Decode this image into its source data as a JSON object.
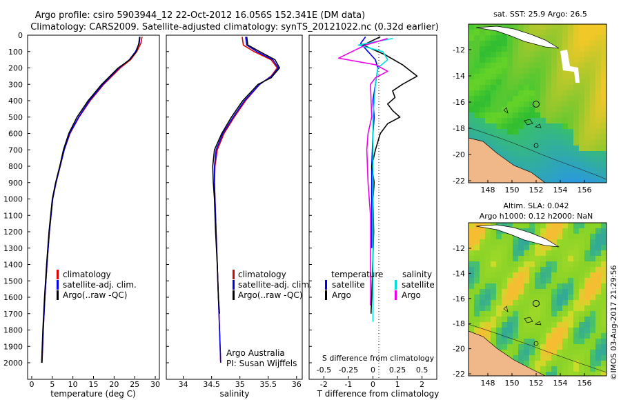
{
  "header": {
    "line1": "Argo profile: csiro 5903944_12 22-Oct-2012 16.056S 152.341E (DM data)",
    "line2": "Climatology: CARS2009. Satellite-adjusted climatology: synTS_20121022.nc (0.32d earlier)"
  },
  "credit": "©IMOS 03-Aug-2017 21:29:56",
  "colors": {
    "climatology": "#dd0000",
    "satellite_adj": "#0000ee",
    "argo": "#000000",
    "sat_salinity": "#00dddd",
    "argo_salinity_diff": "#ee00ee",
    "land": "#f0b888"
  },
  "chart_data": [
    {
      "id": "temperature",
      "type": "line",
      "xlabel": "temperature (deg C)",
      "ylabel": "depth",
      "xlim": [
        -1,
        31
      ],
      "ylim": [
        2100,
        0
      ],
      "xticks": [
        0,
        5,
        10,
        15,
        20,
        25,
        30
      ],
      "yticks": [
        0,
        100,
        200,
        300,
        400,
        500,
        600,
        700,
        800,
        900,
        1000,
        1100,
        1200,
        1300,
        1400,
        1500,
        1600,
        1700,
        1800,
        1900,
        2000
      ],
      "legend": [
        "climatology",
        "satellite-adj. clim.",
        "Argo(..raw -QC)"
      ],
      "series": [
        {
          "name": "climatology",
          "color": "#dd0000",
          "points": [
            [
              26.8,
              10
            ],
            [
              26.5,
              50
            ],
            [
              25.5,
              100
            ],
            [
              24,
              150
            ],
            [
              21.5,
              200
            ],
            [
              17.5,
              300
            ],
            [
              14.2,
              400
            ],
            [
              11.5,
              500
            ],
            [
              9.3,
              600
            ],
            [
              7.9,
              700
            ],
            [
              6.9,
              800
            ],
            [
              5.9,
              900
            ],
            [
              5.1,
              1000
            ],
            [
              4.3,
              1200
            ],
            [
              3.7,
              1400
            ],
            [
              3.2,
              1600
            ],
            [
              2.8,
              1800
            ],
            [
              2.5,
              2000
            ]
          ]
        },
        {
          "name": "satellite-adj. clim.",
          "color": "#0000ee",
          "points": [
            [
              26.3,
              10
            ],
            [
              26.1,
              50
            ],
            [
              25.2,
              100
            ],
            [
              23.7,
              150
            ],
            [
              21.2,
              200
            ],
            [
              17.3,
              300
            ],
            [
              14,
              400
            ],
            [
              11.4,
              500
            ],
            [
              9.2,
              600
            ],
            [
              7.9,
              700
            ],
            [
              6.9,
              800
            ],
            [
              5.9,
              900
            ],
            [
              5.1,
              1000
            ],
            [
              4.3,
              1200
            ],
            [
              3.7,
              1400
            ],
            [
              3.2,
              1600
            ],
            [
              2.8,
              1800
            ],
            [
              2.5,
              2000
            ]
          ]
        },
        {
          "name": "Argo",
          "color": "#000000",
          "points": [
            [
              26.2,
              10
            ],
            [
              26,
              50
            ],
            [
              25.4,
              100
            ],
            [
              23.8,
              150
            ],
            [
              21,
              200
            ],
            [
              17,
              300
            ],
            [
              13.7,
              400
            ],
            [
              11,
              500
            ],
            [
              9,
              600
            ],
            [
              7.7,
              700
            ],
            [
              6.8,
              800
            ],
            [
              5.8,
              900
            ],
            [
              5,
              1000
            ],
            [
              4.2,
              1200
            ],
            [
              3.6,
              1400
            ],
            [
              3.1,
              1600
            ],
            [
              2.7,
              1800
            ],
            [
              2.4,
              2000
            ]
          ]
        }
      ]
    },
    {
      "id": "salinity",
      "type": "line",
      "xlabel": "salinity",
      "ylim": [
        2100,
        0
      ],
      "xlim": [
        33.7,
        36.1
      ],
      "xticks": [
        34,
        34.5,
        35,
        35.5,
        36
      ],
      "legend": [
        "climatology",
        "satellite-adj. clim.",
        "Argo(..raw -QC)"
      ],
      "annotations": [
        "Argo Australia",
        "PI: Susan Wijffels"
      ],
      "series": [
        {
          "name": "climatology",
          "color": "#dd0000",
          "points": [
            [
              35.04,
              10
            ],
            [
              35.06,
              60
            ],
            [
              35.25,
              100
            ],
            [
              35.55,
              150
            ],
            [
              35.66,
              200
            ],
            [
              35.55,
              250
            ],
            [
              35.35,
              300
            ],
            [
              35.1,
              400
            ],
            [
              34.9,
              500
            ],
            [
              34.72,
              600
            ],
            [
              34.6,
              700
            ],
            [
              34.56,
              800
            ],
            [
              34.55,
              900
            ],
            [
              34.56,
              1000
            ],
            [
              34.58,
              1200
            ],
            [
              34.6,
              1400
            ],
            [
              34.62,
              1600
            ],
            [
              34.64,
              1800
            ],
            [
              34.66,
              2000
            ]
          ]
        },
        {
          "name": "satellite-adj. clim.",
          "color": "#0000ee",
          "points": [
            [
              35.1,
              10
            ],
            [
              35.12,
              60
            ],
            [
              35.3,
              100
            ],
            [
              35.58,
              150
            ],
            [
              35.68,
              200
            ],
            [
              35.56,
              250
            ],
            [
              35.35,
              300
            ],
            [
              35.08,
              400
            ],
            [
              34.88,
              500
            ],
            [
              34.7,
              600
            ],
            [
              34.58,
              700
            ],
            [
              34.55,
              800
            ],
            [
              34.55,
              900
            ],
            [
              34.56,
              1000
            ],
            [
              34.58,
              1200
            ],
            [
              34.6,
              1400
            ],
            [
              34.62,
              1600
            ],
            [
              34.64,
              1800
            ],
            [
              34.66,
              2000
            ]
          ]
        },
        {
          "name": "Argo",
          "color": "#000000",
          "points": [
            [
              35.12,
              10
            ],
            [
              35.14,
              60
            ],
            [
              35.35,
              100
            ],
            [
              35.62,
              150
            ],
            [
              35.7,
              200
            ],
            [
              35.55,
              260
            ],
            [
              35.32,
              300
            ],
            [
              35.05,
              400
            ],
            [
              34.85,
              500
            ],
            [
              34.68,
              600
            ],
            [
              34.55,
              700
            ],
            [
              34.52,
              800
            ],
            [
              34.53,
              900
            ],
            [
              34.55,
              1000
            ],
            [
              34.57,
              1200
            ],
            [
              34.6,
              1400
            ],
            [
              34.62,
              1600
            ],
            [
              34.64,
              1700
            ]
          ]
        }
      ]
    },
    {
      "id": "differences",
      "type": "line",
      "xlabel_top": "S difference from climatology",
      "xlabel": "T difference from climatology",
      "ylim": [
        2100,
        0
      ],
      "xlim": [
        -2.6,
        2.6
      ],
      "xticks_T": [
        -2,
        -1,
        0,
        1,
        2
      ],
      "xticks_S": [
        "-0.5",
        "-0.25",
        "0",
        "0.25",
        "0.5"
      ],
      "legend_titles": [
        "temperature",
        "salinity"
      ],
      "legend": [
        [
          "satellite",
          "Argo"
        ],
        [
          "satellite",
          "Argo"
        ]
      ],
      "series": [
        {
          "name": "temperature satellite",
          "color": "#0000ee",
          "points": [
            [
              -0.3,
              10
            ],
            [
              -0.5,
              50
            ],
            [
              -0.2,
              100
            ],
            [
              0.1,
              150
            ],
            [
              0.2,
              200
            ],
            [
              0.1,
              300
            ],
            [
              0,
              400
            ],
            [
              0.05,
              500
            ],
            [
              0,
              600
            ],
            [
              -0.05,
              800
            ],
            [
              -0.05,
              1000
            ],
            [
              -0.05,
              1300
            ]
          ]
        },
        {
          "name": "temperature Argo",
          "color": "#000000",
          "points": [
            [
              0.3,
              10
            ],
            [
              -0.4,
              60
            ],
            [
              0.5,
              120
            ],
            [
              1.2,
              180
            ],
            [
              1.8,
              250
            ],
            [
              1.2,
              300
            ],
            [
              0.8,
              340
            ],
            [
              0.9,
              380
            ],
            [
              0.6,
              420
            ],
            [
              0.8,
              460
            ],
            [
              1.1,
              500
            ],
            [
              0.6,
              540
            ],
            [
              0.3,
              600
            ],
            [
              0.1,
              700
            ],
            [
              -0.05,
              800
            ],
            [
              0.05,
              900
            ],
            [
              0,
              1000
            ],
            [
              0.03,
              1200
            ],
            [
              -0.05,
              1600
            ],
            [
              -0.08,
              1700
            ]
          ]
        },
        {
          "name": "salinity satellite",
          "color": "#00dddd",
          "points": [
            [
              0.8,
              20
            ],
            [
              -0.6,
              60
            ],
            [
              0.4,
              100
            ],
            [
              0.6,
              150
            ],
            [
              0.2,
              200
            ],
            [
              0.1,
              300
            ],
            [
              0.05,
              400
            ],
            [
              0,
              500
            ],
            [
              0,
              700
            ],
            [
              0,
              1000
            ],
            [
              0,
              1400
            ],
            [
              0,
              1750
            ]
          ]
        },
        {
          "name": "salinity Argo",
          "color": "#ee00ee",
          "points": [
            [
              0.6,
              20
            ],
            [
              -0.3,
              60
            ],
            [
              -1.4,
              140
            ],
            [
              0.1,
              180
            ],
            [
              0.6,
              220
            ],
            [
              0.1,
              260
            ],
            [
              -0.1,
              300
            ],
            [
              -0.05,
              500
            ],
            [
              -0.2,
              600
            ],
            [
              -0.25,
              700
            ],
            [
              -0.2,
              900
            ],
            [
              -0.1,
              1100
            ],
            [
              -0.1,
              1300
            ],
            [
              -0.1,
              1500
            ],
            [
              -0.1,
              1650
            ]
          ]
        }
      ]
    }
  ],
  "maps": [
    {
      "id": "sst-map",
      "title": "sat. SST: 25.9  Argo: 26.5",
      "xticks": [
        "148",
        "150",
        "152",
        "154",
        "156"
      ],
      "yticks": [
        "-12",
        "-14",
        "-16",
        "-18",
        "-20",
        "-22"
      ],
      "argo_position": {
        "lon": 152.341,
        "lat": -16.056
      }
    },
    {
      "id": "sla-map",
      "title1": "Altim. SLA: 0.042",
      "title2": "Argo h1000: 0.12  h2000: NaN",
      "xticks": [
        "148",
        "150",
        "152",
        "154",
        "156"
      ],
      "yticks": [
        "-12",
        "-14",
        "-16",
        "-18",
        "-20",
        "-22"
      ],
      "argo_position": {
        "lon": 152.341,
        "lat": -16.056
      }
    }
  ]
}
